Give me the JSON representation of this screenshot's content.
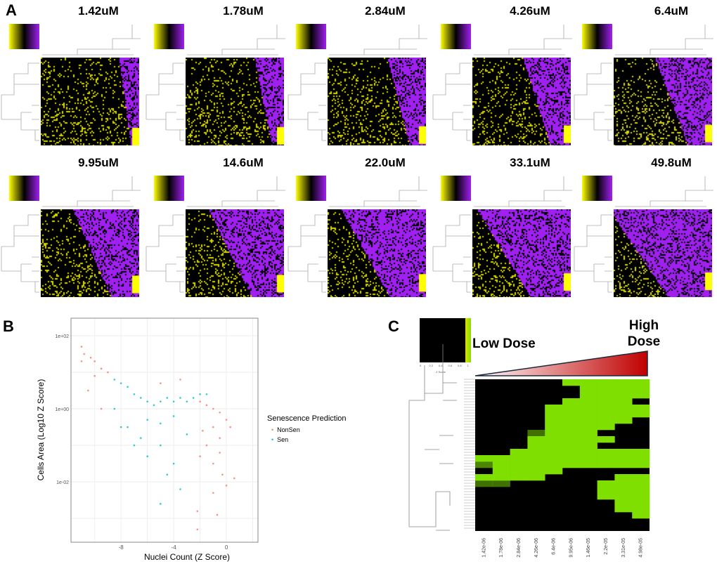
{
  "panel_labels": [
    "A",
    "B",
    "C"
  ],
  "chart_data": [
    {
      "type": "heatmap",
      "panel": "A",
      "titles": [
        "1.42uM",
        "1.78uM",
        "2.84uM",
        "4.26uM",
        "6.4uM",
        "9.95uM",
        "14.6uM",
        "22.0uM",
        "33.1uM",
        "49.8uM"
      ],
      "colors": {
        "low": "#ffff00",
        "mid": "#000000",
        "high": "#a020f0"
      }
    },
    {
      "type": "scatter",
      "panel": "B",
      "xlabel": "Nuclei Count (Z Score)",
      "ylabel": "Cells Area (Log10 Z Score)",
      "xticks": [
        "-8",
        "-4",
        "0"
      ],
      "yticks": [
        "1e+02",
        "1e+00",
        "1e-02"
      ],
      "xlim": [
        -11.8,
        2.4
      ],
      "ylim_log10": [
        -3.65,
        2.48
      ],
      "y_scale": "log",
      "grid": true,
      "legend": {
        "title": "Senescence Prediction",
        "placement": "right"
      },
      "series": [
        {
          "name": "NonSen",
          "color": "#f8766d",
          "points": [
            [
              -11,
              1.7
            ],
            [
              -11,
              1.3
            ],
            [
              -10.8,
              1.5
            ],
            [
              -10.3,
              1.4
            ],
            [
              -10,
              1.3
            ],
            [
              -9.5,
              1.1
            ],
            [
              -9,
              1.0
            ],
            [
              -10,
              0.9
            ],
            [
              -2,
              0.2
            ],
            [
              -1.5,
              0.1
            ],
            [
              -1,
              0
            ],
            [
              -0.5,
              -0.1
            ],
            [
              -1,
              -0.5
            ],
            [
              -0.5,
              -0.8
            ],
            [
              0,
              -0.3
            ],
            [
              -1.5,
              -1
            ],
            [
              -2,
              -1.3
            ],
            [
              -1,
              -1.5
            ],
            [
              -0.3,
              -1.8
            ],
            [
              0,
              -2.1
            ],
            [
              -2.2,
              -2.8
            ],
            [
              -1,
              -2.3
            ],
            [
              -2.2,
              -3.3
            ],
            [
              -0.7,
              -2.9
            ],
            [
              -3.5,
              0.8
            ],
            [
              -5,
              0.7
            ],
            [
              0.3,
              -0.5
            ],
            [
              0.6,
              -1.9
            ],
            [
              -0.5,
              -1.2
            ],
            [
              -1.8,
              -0.6
            ],
            [
              -9.5,
              0
            ],
            [
              -10.5,
              0.5
            ]
          ]
        },
        {
          "name": "Sen",
          "color": "#00bfc4",
          "points": [
            [
              -8.5,
              0.8
            ],
            [
              -8,
              0.7
            ],
            [
              -7.5,
              0.6
            ],
            [
              -7,
              0.4
            ],
            [
              -6.5,
              0.3
            ],
            [
              -6,
              0.2
            ],
            [
              -5.5,
              0.1
            ],
            [
              -5,
              0.2
            ],
            [
              -4.5,
              0.3
            ],
            [
              -4,
              0.2
            ],
            [
              -3.5,
              0.3
            ],
            [
              -3,
              0.2
            ],
            [
              -2.5,
              0.3
            ],
            [
              -2,
              0.4
            ],
            [
              -1.5,
              0.4
            ],
            [
              -6,
              -0.3
            ],
            [
              -5,
              -0.4
            ],
            [
              -4,
              -0.2
            ],
            [
              -7.5,
              -0.5
            ],
            [
              -8,
              -0.5
            ],
            [
              -6.5,
              -0.8
            ],
            [
              -6,
              -1.3
            ],
            [
              -5,
              -1
            ],
            [
              -4,
              -1.5
            ],
            [
              -4.5,
              -1.8
            ],
            [
              -3.5,
              -2.2
            ],
            [
              -5,
              -2.6
            ],
            [
              -3,
              -0.7
            ],
            [
              -8.5,
              0
            ],
            [
              -7,
              -1
            ]
          ]
        }
      ]
    },
    {
      "type": "heatmap",
      "panel": "C",
      "columns": [
        "1.42e-06",
        "1.78e-06",
        "2.84e-06",
        "4.26e-06",
        "6.4e-06",
        "9.95e-06",
        "1.46e-05",
        "2.2e-05",
        "3.31e-05",
        "4.98e-05"
      ],
      "legend_ticks": [
        "0",
        "0.2",
        "0.4",
        "0.6",
        "0.8",
        "1"
      ],
      "legend_label": "Z Score",
      "colors": {
        "low": "#000000",
        "high": "#7fe000"
      },
      "annotations": {
        "low": "Low Dose",
        "high": "High Dose"
      },
      "rows": [
        [
          0,
          0,
          0,
          0,
          0,
          1,
          1,
          1,
          1,
          1
        ],
        [
          0,
          0,
          0,
          0,
          0,
          0,
          1,
          1,
          1,
          1
        ],
        [
          0,
          0,
          0,
          0,
          0,
          0,
          1,
          1,
          1,
          1
        ],
        [
          0,
          0,
          0,
          0,
          0,
          1,
          1,
          1,
          1,
          0
        ],
        [
          0,
          0,
          0,
          0,
          1,
          1,
          1,
          1,
          1,
          1
        ],
        [
          0,
          0,
          0,
          0,
          1,
          1,
          1,
          1,
          1,
          1
        ],
        [
          0,
          0,
          0,
          0,
          1,
          1,
          1,
          1,
          1,
          0
        ],
        [
          0,
          0,
          0,
          0,
          1,
          1,
          1,
          1,
          0,
          0
        ],
        [
          0,
          0,
          0,
          0.5,
          1,
          1,
          1,
          0,
          0,
          0
        ],
        [
          0,
          0,
          0,
          1,
          1,
          1,
          1,
          1,
          0,
          0
        ],
        [
          0,
          0,
          0,
          1,
          1,
          1,
          1,
          0,
          0,
          0
        ],
        [
          0,
          0,
          1,
          1,
          1,
          1,
          1,
          1,
          1,
          1
        ],
        [
          1,
          1,
          1,
          1,
          1,
          1,
          1,
          1,
          1,
          1
        ],
        [
          0.6,
          1,
          1,
          1,
          1,
          1,
          1,
          1,
          1,
          1
        ],
        [
          0,
          1,
          1,
          1,
          1,
          0,
          0,
          0,
          0,
          0
        ],
        [
          1,
          1,
          1,
          1,
          0,
          0,
          0,
          0,
          1,
          1
        ],
        [
          0.5,
          0.5,
          0,
          0,
          0,
          0,
          0,
          1,
          1,
          1
        ],
        [
          0,
          0,
          0,
          0,
          0,
          0,
          0,
          1,
          1,
          1
        ],
        [
          0,
          0,
          0,
          0,
          0,
          0,
          0,
          1,
          1,
          1
        ],
        [
          0,
          0,
          0,
          0,
          0,
          0,
          0,
          0,
          1,
          1
        ],
        [
          0,
          0,
          0,
          0,
          0,
          0,
          0,
          0,
          1,
          1
        ],
        [
          0,
          0,
          0,
          0,
          0,
          0,
          0,
          0,
          0,
          1
        ],
        [
          0,
          0,
          0,
          0,
          0,
          0,
          0,
          0,
          0,
          0
        ],
        [
          0,
          0,
          0,
          0,
          0,
          0,
          0,
          0,
          0,
          0
        ]
      ]
    }
  ]
}
